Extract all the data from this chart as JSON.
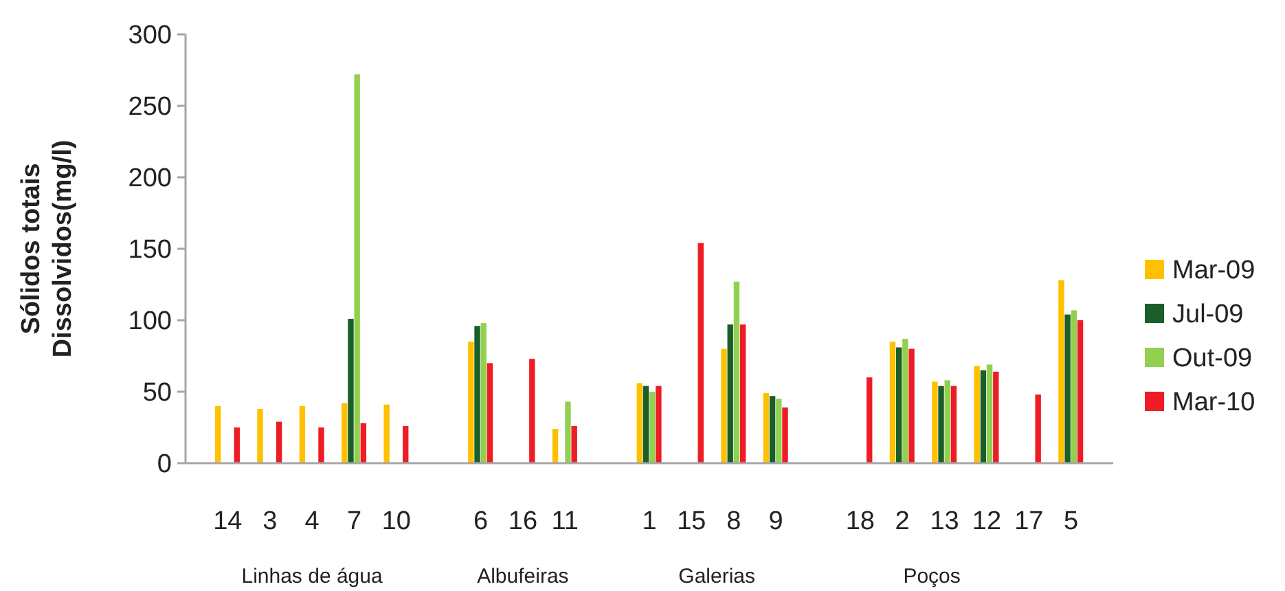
{
  "chart_data": {
    "type": "bar",
    "ylabel": "Sólidos totais\nDissolvidos(mg/l)",
    "categories": [
      "14",
      "3",
      "4",
      "7",
      "10",
      null,
      "6",
      "16",
      "11",
      null,
      "1",
      "15",
      "8",
      "9",
      null,
      "18",
      "2",
      "13",
      "12",
      "17",
      "5"
    ],
    "series": [
      {
        "name": "Mar-09",
        "color": "#ffc000",
        "values": [
          40,
          38,
          40,
          42,
          41,
          null,
          85,
          null,
          24,
          null,
          56,
          null,
          80,
          49,
          null,
          null,
          85,
          57,
          68,
          null,
          128
        ]
      },
      {
        "name": "Jul-09",
        "color": "#1a5e2a",
        "values": [
          null,
          null,
          null,
          101,
          null,
          null,
          96,
          null,
          null,
          null,
          54,
          null,
          97,
          47,
          null,
          null,
          81,
          54,
          65,
          null,
          104
        ]
      },
      {
        "name": "Out-09",
        "color": "#92d050",
        "values": [
          null,
          null,
          null,
          272,
          null,
          null,
          98,
          null,
          43,
          null,
          50,
          null,
          127,
          45,
          null,
          null,
          87,
          58,
          69,
          null,
          107
        ]
      },
      {
        "name": "Mar-10",
        "color": "#ee1c25",
        "values": [
          25,
          29,
          25,
          28,
          26,
          null,
          70,
          73,
          26,
          null,
          54,
          154,
          97,
          39,
          null,
          60,
          80,
          54,
          64,
          48,
          100
        ]
      }
    ],
    "annotations": [
      "Linhas de água",
      "Albufeiras",
      "Galerias",
      "Poços"
    ],
    "ylim": [
      0,
      300
    ],
    "yticks": [
      0,
      50,
      100,
      150,
      200,
      250,
      300
    ],
    "grid": false,
    "legend": "right"
  }
}
